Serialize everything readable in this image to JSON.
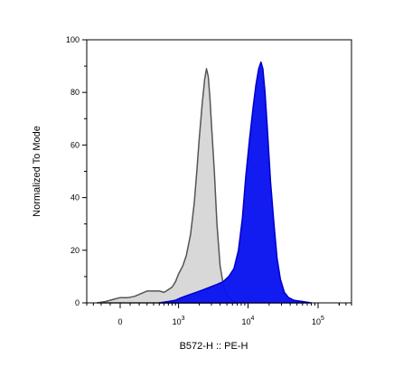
{
  "chart_data": {
    "type": "area",
    "title": "",
    "xlabel": "B572-H :: PE-H",
    "ylabel": "Normalized To Mode",
    "x_scale": "biexponential",
    "ylim": [
      0,
      100
    ],
    "xlim": [
      -400,
      300000
    ],
    "y_ticks": [
      0,
      20,
      40,
      60,
      80,
      100
    ],
    "y_tick_labels": [
      "0",
      "20",
      "40",
      "60",
      "80",
      "100"
    ],
    "x_ticks": [
      0,
      1000,
      10000,
      100000
    ],
    "x_tick_base_labels": [
      "0",
      "10",
      "10",
      "10"
    ],
    "x_tick_exponents": [
      "",
      "3",
      "4",
      "5"
    ],
    "grid": false,
    "series": [
      {
        "color": "#d8d8d8",
        "stroke": "#555555",
        "points": [
          [
            -250,
            0
          ],
          [
            -150,
            0.5
          ],
          [
            -50,
            1.5
          ],
          [
            0,
            2
          ],
          [
            80,
            2
          ],
          [
            150,
            2.5
          ],
          [
            220,
            3.5
          ],
          [
            300,
            4.5
          ],
          [
            400,
            4.5
          ],
          [
            500,
            4.5
          ],
          [
            600,
            4
          ],
          [
            700,
            5
          ],
          [
            800,
            6
          ],
          [
            900,
            8
          ],
          [
            1000,
            11
          ],
          [
            1150,
            14
          ],
          [
            1300,
            18
          ],
          [
            1500,
            26
          ],
          [
            1700,
            38
          ],
          [
            1850,
            50
          ],
          [
            2000,
            62
          ],
          [
            2200,
            75
          ],
          [
            2400,
            85
          ],
          [
            2550,
            89
          ],
          [
            2700,
            86
          ],
          [
            2850,
            78
          ],
          [
            3000,
            68
          ],
          [
            3300,
            50
          ],
          [
            3600,
            30
          ],
          [
            4000,
            14
          ],
          [
            4500,
            6
          ],
          [
            5000,
            3
          ],
          [
            6000,
            1
          ],
          [
            7000,
            0
          ]
        ]
      },
      {
        "color": "#0a14f0",
        "stroke": "#0000cc",
        "points": [
          [
            500,
            0
          ],
          [
            700,
            0.5
          ],
          [
            900,
            1
          ],
          [
            1100,
            2
          ],
          [
            1400,
            3
          ],
          [
            1800,
            4
          ],
          [
            2300,
            5
          ],
          [
            2900,
            6
          ],
          [
            3600,
            7
          ],
          [
            4400,
            8
          ],
          [
            5300,
            10
          ],
          [
            6300,
            13
          ],
          [
            7300,
            20
          ],
          [
            8300,
            32
          ],
          [
            9300,
            48
          ],
          [
            10500,
            62
          ],
          [
            11800,
            74
          ],
          [
            13000,
            83
          ],
          [
            14200,
            89
          ],
          [
            15300,
            91.5
          ],
          [
            16300,
            89
          ],
          [
            17500,
            80
          ],
          [
            19000,
            65
          ],
          [
            21000,
            46
          ],
          [
            23500,
            30
          ],
          [
            26000,
            17
          ],
          [
            29000,
            9
          ],
          [
            33000,
            4
          ],
          [
            38000,
            2
          ],
          [
            45000,
            1
          ],
          [
            60000,
            0.5
          ],
          [
            80000,
            0
          ]
        ]
      }
    ]
  }
}
